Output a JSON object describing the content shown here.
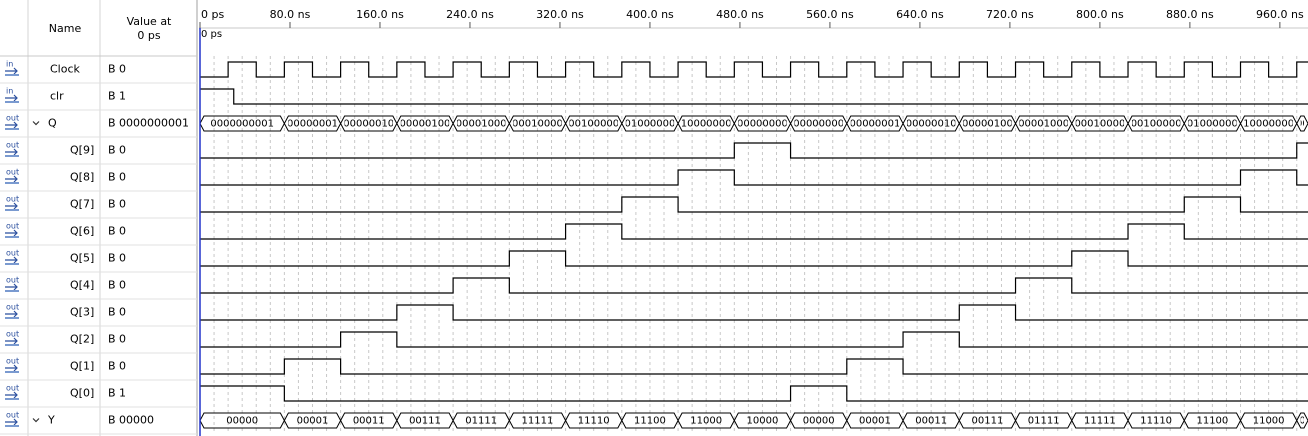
{
  "header": {
    "name": "Name",
    "value_lines": [
      "Value at",
      "0 ps"
    ]
  },
  "cursor_label": "0 ps",
  "time_axis": {
    "unit": "ns",
    "range": [
      0,
      985
    ],
    "grid_step": 12.5,
    "ticks": [
      {
        "value": 0,
        "label": "0 ps"
      },
      {
        "value": 80,
        "label": "80.0 ns"
      },
      {
        "value": 160,
        "label": "160.0 ns"
      },
      {
        "value": 240,
        "label": "240.0 ns"
      },
      {
        "value": 320,
        "label": "320.0 ns"
      },
      {
        "value": 400,
        "label": "400.0 ns"
      },
      {
        "value": 480,
        "label": "480.0 ns"
      },
      {
        "value": 560,
        "label": "560.0 ns"
      },
      {
        "value": 640,
        "label": "640.0 ns"
      },
      {
        "value": 720,
        "label": "720.0 ns"
      },
      {
        "value": 800,
        "label": "800.0 ns"
      },
      {
        "value": 880,
        "label": "880.0 ns"
      },
      {
        "value": 960,
        "label": "960.0 ns"
      }
    ]
  },
  "signals": [
    {
      "dir": "in",
      "name": "Clock",
      "value": "B 0",
      "wave": {
        "kind": "bit",
        "initial": 0,
        "transitions": [
          25,
          50,
          75,
          100,
          125,
          150,
          175,
          200,
          225,
          250,
          275,
          300,
          325,
          350,
          375,
          400,
          425,
          450,
          475,
          500,
          525,
          550,
          575,
          600,
          625,
          650,
          675,
          700,
          725,
          750,
          775,
          800,
          825,
          850,
          875,
          900,
          925,
          950,
          975
        ]
      }
    },
    {
      "dir": "in",
      "name": "clr",
      "value": "B 1",
      "wave": {
        "kind": "bit",
        "initial": 1,
        "transitions": [
          30
        ]
      }
    },
    {
      "dir": "out",
      "name": "Q",
      "value": "B 0000000001",
      "expandable": true,
      "wave": {
        "kind": "bus",
        "boundaries": [
          75,
          125,
          175,
          225,
          275,
          325,
          375,
          425,
          475,
          525,
          575,
          625,
          675,
          725,
          775,
          825,
          875,
          925,
          975
        ],
        "values": [
          "0000000001",
          "0000000010",
          "0000000100",
          "0000001000",
          "0000010000",
          "0000100000",
          "0001000000",
          "0010000000",
          "0100000000",
          "1000000000",
          "0000000001",
          "0000000010",
          "0000000100",
          "0000001000",
          "0000010000",
          "0000100000",
          "0001000000",
          "0010000000",
          "0100000000",
          "1000000000"
        ]
      }
    },
    {
      "dir": "out",
      "name": "Q[9]",
      "value": "B 0",
      "child": true,
      "wave": {
        "kind": "bit",
        "initial": 0,
        "transitions": [
          475,
          525,
          975
        ]
      }
    },
    {
      "dir": "out",
      "name": "Q[8]",
      "value": "B 0",
      "child": true,
      "wave": {
        "kind": "bit",
        "initial": 0,
        "transitions": [
          425,
          475,
          925,
          975
        ]
      }
    },
    {
      "dir": "out",
      "name": "Q[7]",
      "value": "B 0",
      "child": true,
      "wave": {
        "kind": "bit",
        "initial": 0,
        "transitions": [
          375,
          425,
          875,
          925
        ]
      }
    },
    {
      "dir": "out",
      "name": "Q[6]",
      "value": "B 0",
      "child": true,
      "wave": {
        "kind": "bit",
        "initial": 0,
        "transitions": [
          325,
          375,
          825,
          875
        ]
      }
    },
    {
      "dir": "out",
      "name": "Q[5]",
      "value": "B 0",
      "child": true,
      "wave": {
        "kind": "bit",
        "initial": 0,
        "transitions": [
          275,
          325,
          775,
          825
        ]
      }
    },
    {
      "dir": "out",
      "name": "Q[4]",
      "value": "B 0",
      "child": true,
      "wave": {
        "kind": "bit",
        "initial": 0,
        "transitions": [
          225,
          275,
          725,
          775
        ]
      }
    },
    {
      "dir": "out",
      "name": "Q[3]",
      "value": "B 0",
      "child": true,
      "wave": {
        "kind": "bit",
        "initial": 0,
        "transitions": [
          175,
          225,
          675,
          725
        ]
      }
    },
    {
      "dir": "out",
      "name": "Q[2]",
      "value": "B 0",
      "child": true,
      "wave": {
        "kind": "bit",
        "initial": 0,
        "transitions": [
          125,
          175,
          625,
          675
        ]
      }
    },
    {
      "dir": "out",
      "name": "Q[1]",
      "value": "B 0",
      "child": true,
      "wave": {
        "kind": "bit",
        "initial": 0,
        "transitions": [
          75,
          125,
          575,
          625
        ]
      }
    },
    {
      "dir": "out",
      "name": "Q[0]",
      "value": "B 1",
      "child": true,
      "wave": {
        "kind": "bit",
        "initial": 1,
        "transitions": [
          75,
          525,
          575
        ]
      }
    },
    {
      "dir": "out",
      "name": "Y",
      "value": "B 00000",
      "expandable": true,
      "wave": {
        "kind": "bus",
        "boundaries": [
          75,
          125,
          175,
          225,
          275,
          325,
          375,
          425,
          475,
          525,
          575,
          625,
          675,
          725,
          775,
          825,
          875,
          925,
          975
        ],
        "values": [
          "00000",
          "00001",
          "00011",
          "00111",
          "01111",
          "11111",
          "11110",
          "11100",
          "11000",
          "10000",
          "00000",
          "00001",
          "00011",
          "00111",
          "01111",
          "11111",
          "11110",
          "11100",
          "11000",
          "10000"
        ]
      }
    }
  ]
}
